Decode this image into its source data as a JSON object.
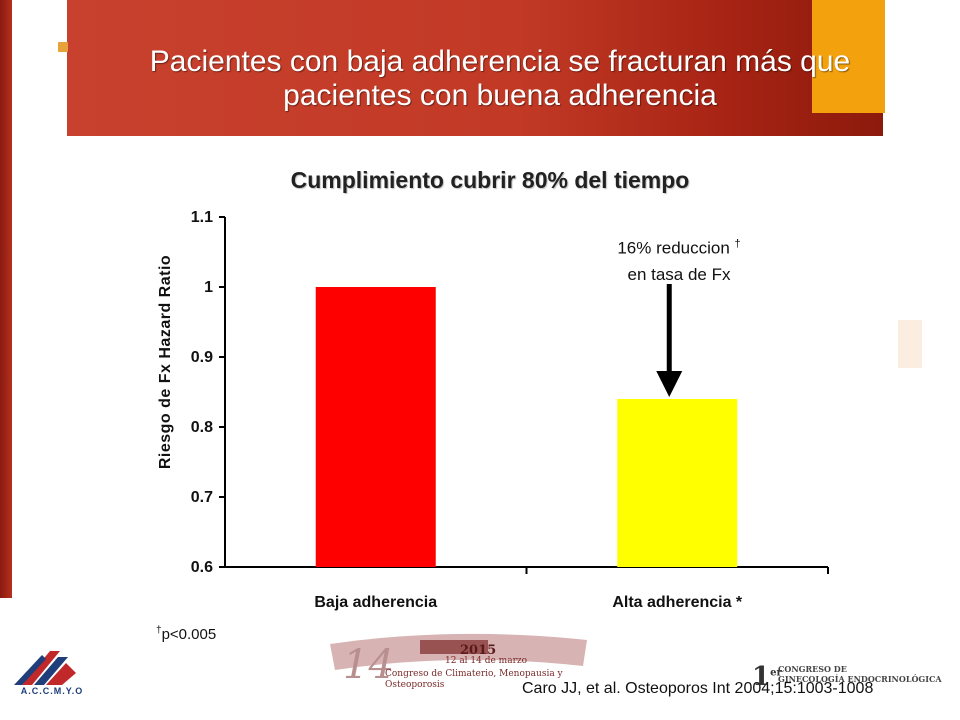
{
  "slide": {
    "title_line1": "Pacientes con baja adherencia se fracturan más que",
    "title_line2": "pacientes con buena adherencia",
    "footnote_mark": "†",
    "footnote_text": "p<0.005",
    "citation": "Caro JJ, et al. Osteoporos Int 2004;15:1003-1008"
  },
  "logos": {
    "accmyo": "A.C.C.M.Y.O",
    "congreso_year": "2015",
    "congreso_dates": "12 al 14 de marzo",
    "congreso_name": "Congreso de Climaterio, Menopausia y Osteoporosis",
    "gineco_line1": "CONGRESO DE",
    "gineco_line2": "GINECOLOGÍA ENDOCRINOLÓGICA"
  },
  "colors": {
    "banner": "#c23a26",
    "accent": "#f4a10e",
    "bar_baja": "#ff0000",
    "bar_alta": "#ffff00"
  },
  "chart_data": {
    "type": "bar",
    "title": "Cumplimiento cubrir 80% del tiempo",
    "ylabel": "Riesgo de Fx Hazard Ratio",
    "xlabel": "",
    "categories": [
      "Baja adherencia",
      "Alta adherencia *"
    ],
    "values": [
      1.0,
      0.84
    ],
    "bar_colors": [
      "#ff0000",
      "#ffff00"
    ],
    "ylim": [
      0.6,
      1.1
    ],
    "yticks": [
      0.6,
      0.7,
      0.8,
      0.9,
      1.0,
      1.1
    ],
    "ytick_labels": [
      "0.6",
      "0.7",
      "0.8",
      "0.9",
      "1",
      "1.1"
    ],
    "grid": false,
    "annotation": {
      "line1": "16% reduccion",
      "mark": "†",
      "line2": "en tasa de Fx",
      "target_category": "Alta adherencia *"
    }
  }
}
